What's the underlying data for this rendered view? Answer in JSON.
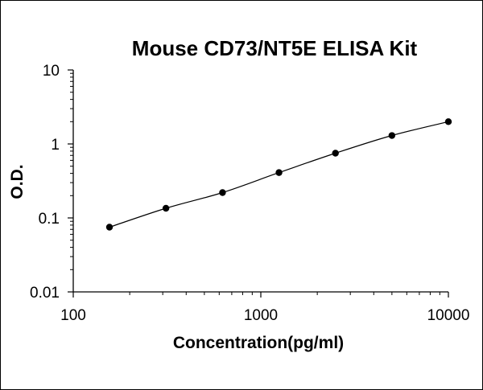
{
  "chart_data": {
    "type": "scatter",
    "title": "Mouse CD73/NT5E ELISA Kit",
    "xlabel": "Concentration(pg/ml)",
    "ylabel": "O.D.",
    "xscale": "log",
    "yscale": "log",
    "xlim": [
      100,
      10000
    ],
    "ylim": [
      0.01,
      10
    ],
    "x_ticks": [
      "100",
      "1000",
      "10000"
    ],
    "y_ticks": [
      "0.01",
      "0.1",
      "1",
      "10"
    ],
    "grid": false,
    "legend": "none",
    "series": [
      {
        "x": [
          156,
          312,
          625,
          1250,
          2500,
          5000,
          10000
        ],
        "y": [
          0.075,
          0.135,
          0.22,
          0.41,
          0.75,
          1.3,
          2.0
        ],
        "marker_color": "#000000",
        "line_color": "#000000"
      }
    ]
  }
}
